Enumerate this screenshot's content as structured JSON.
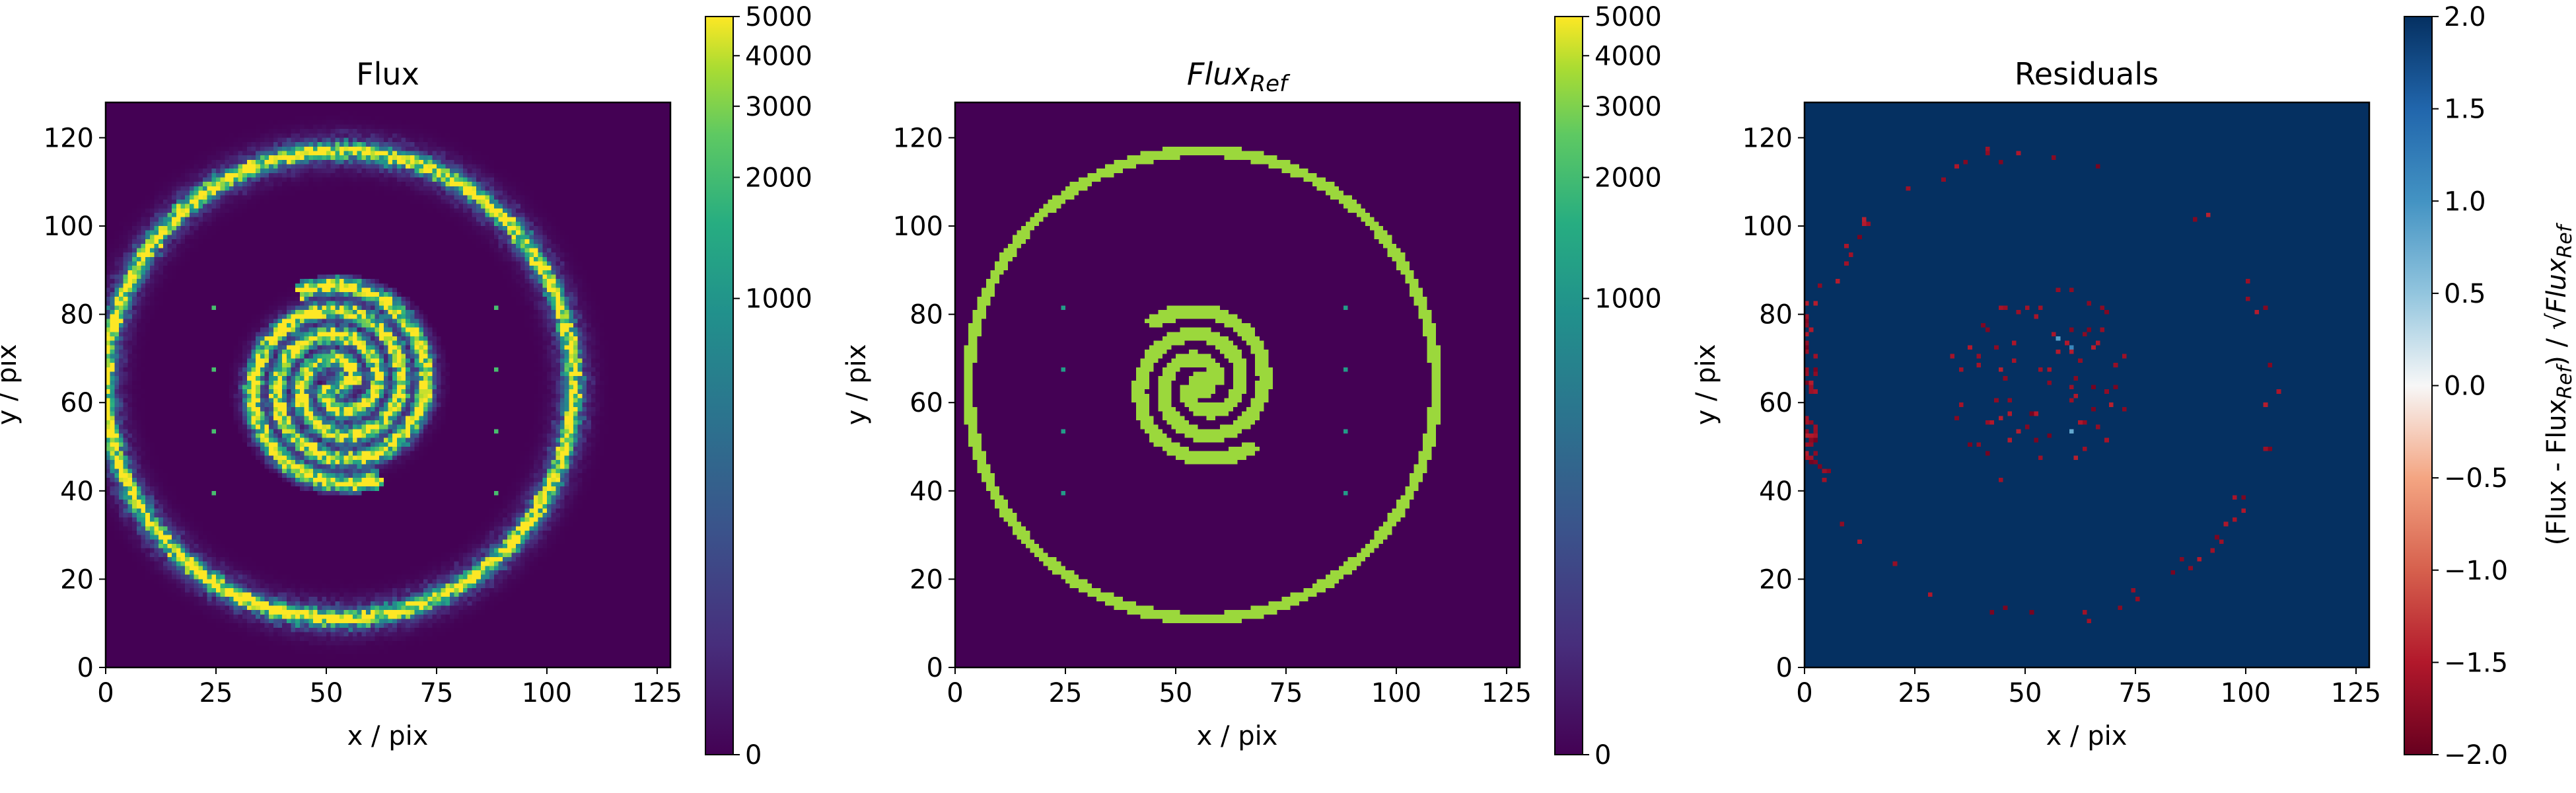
{
  "chart_data": [
    {
      "type": "heatmap",
      "title": "Flux",
      "xlabel": "x / pix",
      "ylabel": "y / pix",
      "xlim": [
        0,
        128
      ],
      "ylim": [
        0,
        128
      ],
      "xticks": [
        "0",
        "25",
        "50",
        "75",
        "100",
        "125"
      ],
      "yticks": [
        "0",
        "20",
        "40",
        "60",
        "80",
        "100",
        "120"
      ],
      "colormap": "viridis",
      "colorbar": {
        "scale": "asinh",
        "range": [
          0,
          5000
        ],
        "ticks": [
          "0",
          "1000",
          "2000",
          "3000",
          "4000",
          "5000"
        ]
      },
      "features": {
        "ring": {
          "center": [
            53,
            64
          ],
          "radius": 53,
          "noisy": true
        },
        "spiral": {
          "center": [
            53,
            64
          ],
          "arms": 2,
          "extent_radius": 20
        },
        "point_sources": [
          [
            24,
            81
          ],
          [
            24,
            67
          ],
          [
            24,
            53
          ],
          [
            24,
            39
          ],
          [
            88,
            81
          ],
          [
            88,
            67
          ],
          [
            88,
            53
          ],
          [
            88,
            39
          ]
        ]
      }
    },
    {
      "type": "heatmap",
      "title": "Flux",
      "title_subscript": "Ref",
      "xlabel": "x / pix",
      "ylabel": "y / pix",
      "xlim": [
        0,
        128
      ],
      "ylim": [
        0,
        128
      ],
      "xticks": [
        "0",
        "25",
        "50",
        "75",
        "100",
        "125"
      ],
      "yticks": [
        "0",
        "20",
        "40",
        "60",
        "80",
        "100",
        "120"
      ],
      "colormap": "viridis",
      "colorbar": {
        "scale": "asinh",
        "range": [
          0,
          5000
        ],
        "ticks": [
          "0",
          "1000",
          "2000",
          "3000",
          "4000",
          "5000"
        ]
      },
      "features": {
        "ring": {
          "center": [
            56,
            64
          ],
          "radius": 53,
          "noisy": false
        },
        "spiral": {
          "center": [
            56,
            64
          ],
          "arms": 2,
          "extent_radius": 18
        },
        "point_sources": [
          [
            24,
            81
          ],
          [
            24,
            67
          ],
          [
            24,
            53
          ],
          [
            24,
            39
          ],
          [
            88,
            81
          ],
          [
            88,
            67
          ],
          [
            88,
            53
          ],
          [
            88,
            39
          ]
        ]
      }
    },
    {
      "type": "heatmap",
      "title": "Residuals",
      "xlabel": "x / pix",
      "ylabel": "y / pix",
      "xlim": [
        0,
        128
      ],
      "ylim": [
        0,
        128
      ],
      "xticks": [
        "0",
        "25",
        "50",
        "75",
        "100",
        "125"
      ],
      "yticks": [
        "0",
        "20",
        "40",
        "60",
        "80",
        "100",
        "120"
      ],
      "colormap": "RdBu",
      "background_value": 2.0,
      "colorbar": {
        "scale": "linear",
        "range": [
          -2.0,
          2.0
        ],
        "ticks": [
          "−2.0",
          "−1.5",
          "−1.0",
          "−0.5",
          "0.0",
          "0.5",
          "1.0",
          "1.5",
          "2.0"
        ],
        "label_prefix": "(Flux - Flux",
        "label_sub1": "Ref",
        "label_mid": ") / √",
        "label_sub2": "Ref"
      }
    }
  ]
}
